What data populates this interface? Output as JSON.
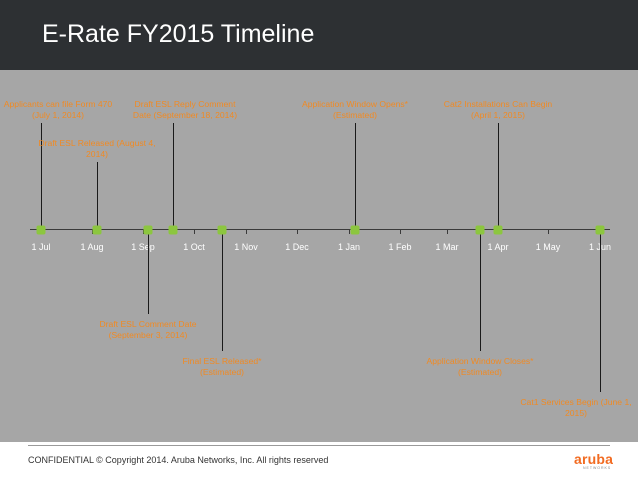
{
  "title": "E-Rate FY2015 Timeline",
  "colors": {
    "header": "#2d3033",
    "panel": "#a6a6a6",
    "marker": "#8cc63f",
    "event_text": "#f08a24",
    "month_text": "#ffffff"
  },
  "timeline": {
    "months": [
      "1 Jul",
      "1 Aug",
      "1 Sep",
      "1 Oct",
      "1 Nov",
      "1 Dec",
      "1 Jan",
      "1 Feb",
      "1 Mar",
      "1 Apr",
      "1 May",
      "1 Jun"
    ],
    "events": [
      {
        "line1": "Applicants can file Form 470",
        "line2": "(July 1, 2014)"
      },
      {
        "line1": "Draft ESL Released (August 4,",
        "line2": "2014)"
      },
      {
        "line1": "Draft ESL Reply Comment",
        "line2": "Date (September 18, 2014)"
      },
      {
        "line1": "Draft ESL Comment Date",
        "line2": "(September 3, 2014)"
      },
      {
        "line1": "Final ESL Released*",
        "line2": "(Estimated)"
      },
      {
        "line1": "Application Window Opens*",
        "line2": "(Estimated)"
      },
      {
        "line1": "Cat2 Installations Can Begin",
        "line2": "(April 1, 2015)"
      },
      {
        "line1": "Application Window Closes*",
        "line2": "(Estimated)"
      },
      {
        "line1": "Cat1 Services Begin (June 1,",
        "line2": "2015)"
      }
    ]
  },
  "footer": {
    "text": "CONFIDENTIAL © Copyright 2014. Aruba Networks, Inc. All rights reserved"
  },
  "logo": {
    "word": "aruba",
    "sub": "NETWORKS"
  }
}
